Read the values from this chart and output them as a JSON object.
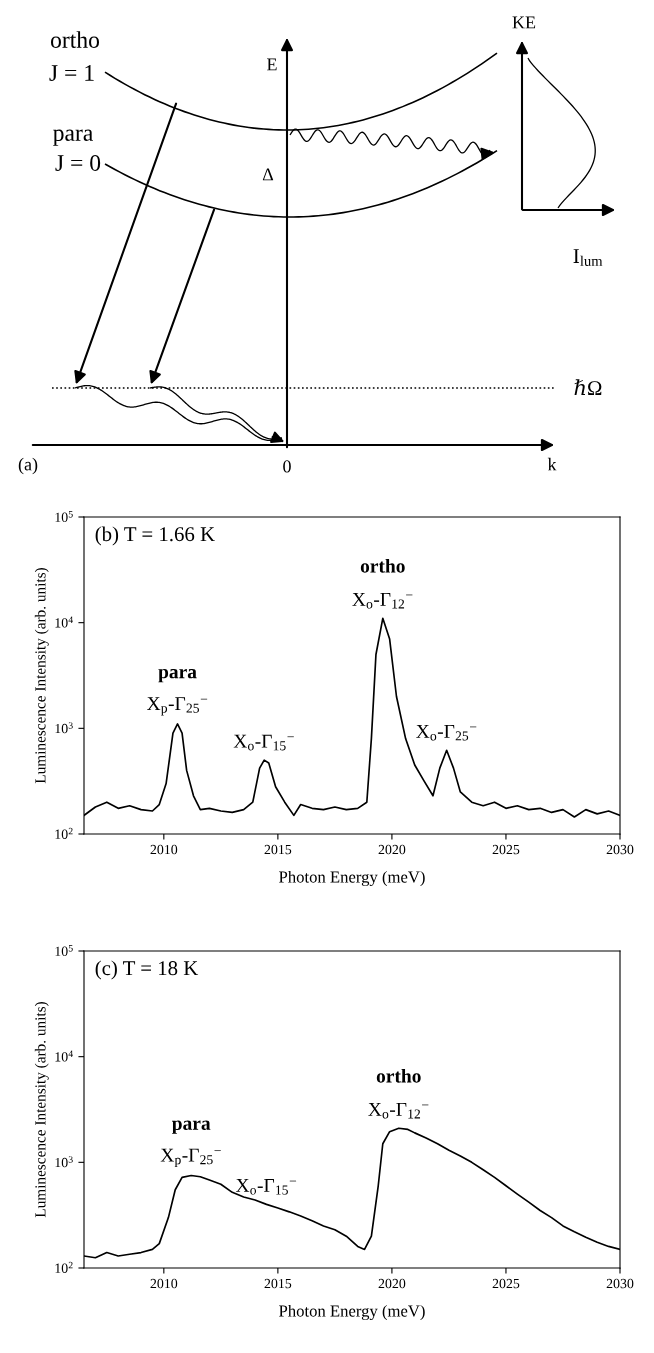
{
  "chart_data": [
    {
      "type": "other",
      "annotations": [
        "ortho",
        "J = 1",
        "para",
        "J = 0",
        "E",
        "Δ",
        "KE",
        "I$_{lum}$",
        "ℏΩ",
        "k",
        "0",
        "(a)"
      ]
    },
    {
      "type": "line",
      "xlabel": "Photon Energy (meV)",
      "ylabel": "Luminescence Intensity (arb. units)",
      "log": true,
      "xlim": [
        2006.5,
        2030
      ],
      "xticks": [
        2010,
        2015,
        2020,
        2025,
        2030
      ],
      "ylim": [
        100,
        100000
      ],
      "yticks": [
        {
          "value": 100,
          "label": "10$^{2}$"
        },
        {
          "value": 1000,
          "label": "10$^{3}$"
        },
        {
          "value": 10000,
          "label": "10$^{4}$"
        },
        {
          "value": 100000,
          "label": "10$^{5}$"
        }
      ],
      "annotations": [
        "(b) T = 1.66 K",
        {
          "text": "X$_{p}$-Γ$_{25}$$^{−}$",
          "x": 2010.6,
          "y": 1100
        },
        {
          "text": "para",
          "x": 2010.6,
          "y": 1100
        },
        {
          "text": "X$_{o}$-Γ$_{15}$$^{−}$",
          "x": 2014.4,
          "y": 500
        },
        {
          "text": "X$_{o}$-Γ$_{12}$$^{−}$",
          "x": 2019.6,
          "y": 11000
        },
        {
          "text": "ortho",
          "x": 2019.6,
          "y": 11000
        },
        {
          "text": "X$_{o}$-Γ$_{25}$$^{−}$",
          "x": 2022.4,
          "y": 620
        }
      ],
      "series": [
        {
          "color": "#000000",
          "x": [
            2006.5,
            2007,
            2007.5,
            2008,
            2008.5,
            2009,
            2009.5,
            2009.8,
            2010.1,
            2010.4,
            2010.6,
            2010.8,
            2011.0,
            2011.3,
            2011.6,
            2012,
            2012.5,
            2013,
            2013.5,
            2013.9,
            2014.2,
            2014.4,
            2014.6,
            2014.9,
            2015.3,
            2015.7,
            2016,
            2016.5,
            2017,
            2017.5,
            2018,
            2018.5,
            2018.9,
            2019.1,
            2019.3,
            2019.6,
            2019.9,
            2020.2,
            2020.6,
            2021,
            2021.4,
            2021.8,
            2022.1,
            2022.4,
            2022.7,
            2023,
            2023.5,
            2024,
            2024.5,
            2025,
            2025.5,
            2026,
            2026.5,
            2027,
            2027.5,
            2028,
            2028.5,
            2029,
            2029.5,
            2030
          ],
          "values": [
            150,
            180,
            200,
            175,
            185,
            170,
            165,
            190,
            300,
            900,
            1100,
            900,
            400,
            230,
            170,
            175,
            165,
            160,
            170,
            200,
            420,
            500,
            470,
            280,
            200,
            150,
            190,
            175,
            170,
            180,
            170,
            175,
            200,
            800,
            5000,
            11000,
            7000,
            2000,
            800,
            450,
            320,
            230,
            420,
            620,
            420,
            250,
            200,
            185,
            200,
            175,
            185,
            170,
            175,
            160,
            170,
            145,
            170,
            155,
            165,
            150
          ]
        }
      ]
    },
    {
      "type": "line",
      "xlabel": "Photon Energy (meV)",
      "ylabel": "Luminescence Intensity (arb. units)",
      "log": true,
      "xlim": [
        2006.5,
        2030
      ],
      "xticks": [
        2010,
        2015,
        2020,
        2025,
        2030
      ],
      "ylim": [
        100,
        100000
      ],
      "yticks": [
        {
          "value": 100,
          "label": "10$^{2}$"
        },
        {
          "value": 1000,
          "label": "10$^{3}$"
        },
        {
          "value": 10000,
          "label": "10$^{4}$"
        },
        {
          "value": 100000,
          "label": "10$^{5}$"
        }
      ],
      "annotations": [
        "(c) T = 18 K",
        {
          "text": "X$_{p}$-Γ$_{25}$$^{−}$",
          "x": 2011.2,
          "y": 750
        },
        {
          "text": "para",
          "x": 2011.2,
          "y": 750
        },
        {
          "text": "X$_{o}$-Γ$_{15}$$^{−}$",
          "x": 2014.5,
          "y": 400
        },
        {
          "text": "X$_{o}$-Γ$_{12}$$^{−}$",
          "x": 2020.3,
          "y": 2100
        },
        {
          "text": "ortho",
          "x": 2020.3,
          "y": 2100
        }
      ],
      "series": [
        {
          "color": "#000000",
          "x": [
            2006.5,
            2007,
            2007.5,
            2008,
            2008.5,
            2009,
            2009.5,
            2009.8,
            2010.2,
            2010.5,
            2010.8,
            2011.2,
            2011.6,
            2012,
            2012.5,
            2013,
            2013.5,
            2014,
            2014.5,
            2015,
            2015.5,
            2016,
            2016.5,
            2017,
            2017.5,
            2018,
            2018.5,
            2018.8,
            2019.1,
            2019.4,
            2019.6,
            2019.9,
            2020.3,
            2020.7,
            2021,
            2021.5,
            2022,
            2022.5,
            2023,
            2023.5,
            2024,
            2024.5,
            2025,
            2025.5,
            2026,
            2026.5,
            2027,
            2027.5,
            2028,
            2028.5,
            2029,
            2029.5,
            2030
          ],
          "values": [
            130,
            125,
            140,
            130,
            135,
            140,
            150,
            170,
            300,
            550,
            720,
            750,
            730,
            680,
            620,
            520,
            470,
            440,
            400,
            370,
            340,
            310,
            280,
            250,
            230,
            200,
            160,
            150,
            200,
            600,
            1500,
            1950,
            2100,
            2050,
            1900,
            1700,
            1500,
            1300,
            1150,
            1000,
            850,
            720,
            600,
            500,
            420,
            350,
            300,
            250,
            220,
            195,
            175,
            160,
            150
          ]
        }
      ]
    }
  ]
}
